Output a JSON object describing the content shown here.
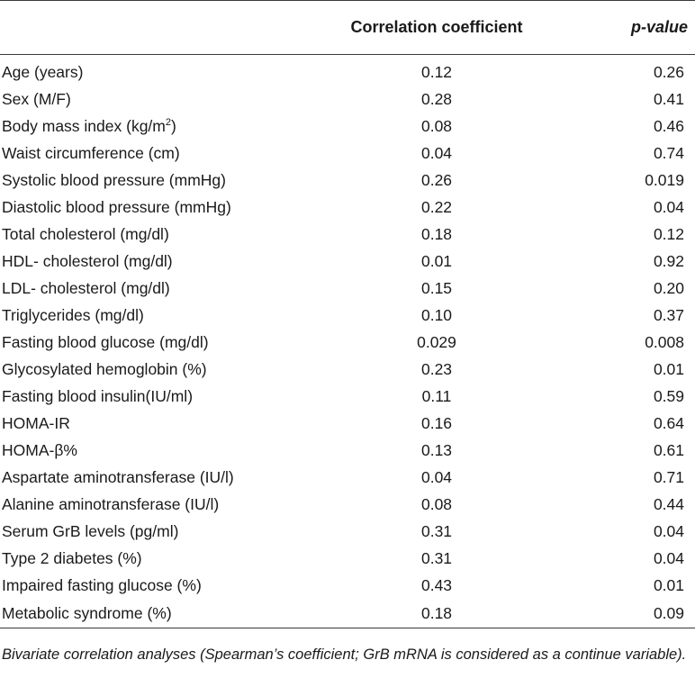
{
  "table": {
    "headers": {
      "variable": "",
      "correlation": "Correlation coefficient",
      "pvalue": "p-value"
    },
    "rows": [
      {
        "variable": "Age (years)",
        "correlation": "0.12",
        "pvalue": "0.26"
      },
      {
        "variable": "Sex (M/F)",
        "correlation": "0.28",
        "pvalue": "0.41"
      },
      {
        "variable": "Body mass index (kg/m",
        "variable_sup": "2",
        "variable_tail": ")",
        "correlation": "0.08",
        "pvalue": "0.46"
      },
      {
        "variable": "Waist circumference (cm)",
        "correlation": "0.04",
        "pvalue": "0.74"
      },
      {
        "variable": "Systolic blood pressure (mmHg)",
        "correlation": "0.26",
        "pvalue": "0.019"
      },
      {
        "variable": "Diastolic blood pressure (mmHg)",
        "correlation": "0.22",
        "pvalue": "0.04"
      },
      {
        "variable": "Total cholesterol (mg/dl)",
        "correlation": "0.18",
        "pvalue": "0.12"
      },
      {
        "variable": "HDL- cholesterol (mg/dl)",
        "correlation": "0.01",
        "pvalue": "0.92"
      },
      {
        "variable": "LDL- cholesterol (mg/dl)",
        "correlation": "0.15",
        "pvalue": "0.20"
      },
      {
        "variable": "Triglycerides (mg/dl)",
        "correlation": "0.10",
        "pvalue": "0.37"
      },
      {
        "variable": "Fasting blood glucose (mg/dl)",
        "correlation": "0.029",
        "pvalue": "0.008"
      },
      {
        "variable": "Glycosylated hemoglobin (%)",
        "correlation": "0.23",
        "pvalue": "0.01"
      },
      {
        "variable": "Fasting blood insulin(IU/ml)",
        "correlation": "0.11",
        "pvalue": "0.59"
      },
      {
        "variable": "HOMA-IR",
        "correlation": "0.16",
        "pvalue": "0.64"
      },
      {
        "variable": "HOMA-β%",
        "correlation": "0.13",
        "pvalue": "0.61"
      },
      {
        "variable": "Aspartate aminotransferase (IU/l)",
        "correlation": "0.04",
        "pvalue": "0.71"
      },
      {
        "variable": "Alanine aminotransferase (IU/l)",
        "correlation": "0.08",
        "pvalue": "0.44"
      },
      {
        "variable": "Serum GrB levels (pg/ml)",
        "correlation": "0.31",
        "pvalue": "0.04"
      },
      {
        "variable": "Type 2 diabetes (%)",
        "correlation": "0.31",
        "pvalue": "0.04"
      },
      {
        "variable": "Impaired fasting glucose (%)",
        "correlation": "0.43",
        "pvalue": "0.01"
      },
      {
        "variable": "Metabolic syndrome (%)",
        "correlation": "0.18",
        "pvalue": "0.09"
      }
    ]
  },
  "footnote": "Bivariate correlation analyses (Spearman’s coefficient; GrB mRNA is considered as a continue variable)."
}
